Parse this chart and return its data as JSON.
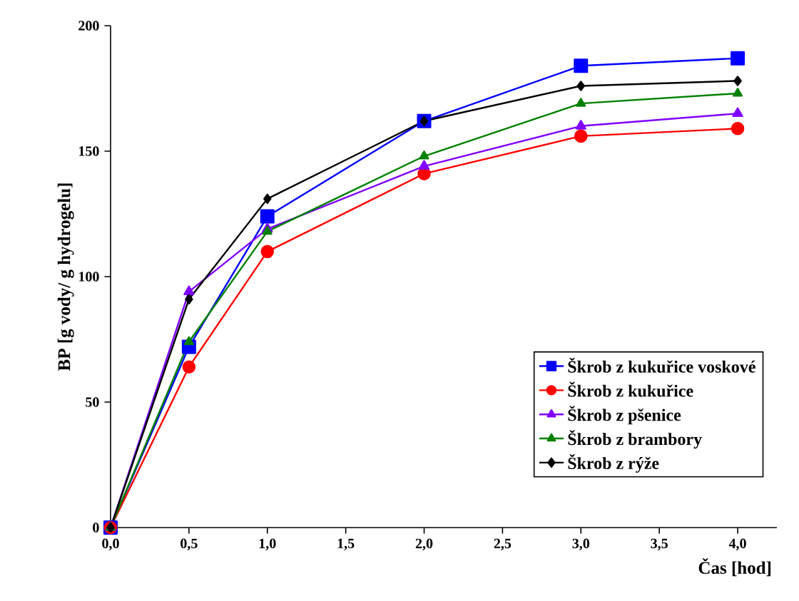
{
  "chart_data": {
    "type": "line",
    "xlabel": "Čas [hod]",
    "ylabel": "BP [g vody/ g hydrogelu]",
    "x": [
      0,
      0.5,
      1,
      2,
      3,
      4
    ],
    "series": [
      {
        "name": "Škrob z kukuřice voskové",
        "color": "#0000ff",
        "marker": "square",
        "values": [
          0,
          72,
          124,
          162,
          184,
          187
        ]
      },
      {
        "name": "Škrob z kukuřice",
        "color": "#ff0000",
        "marker": "circle",
        "values": [
          0,
          64,
          110,
          141,
          156,
          159
        ]
      },
      {
        "name": "Škrob z pšenice",
        "color": "#8000ff",
        "marker": "triangle",
        "values": [
          0,
          94,
          119,
          144,
          160,
          165
        ]
      },
      {
        "name": "Škrob z brambory",
        "color": "#008000",
        "marker": "triangle",
        "values": [
          0,
          74,
          118,
          148,
          169,
          173
        ]
      },
      {
        "name": "Škrob z rýže",
        "color": "#000000",
        "marker": "diamond",
        "values": [
          0,
          91,
          131,
          162,
          176,
          178
        ]
      }
    ],
    "xlim": [
      0,
      4.25
    ],
    "ylim": [
      0,
      200
    ],
    "xticks": [
      {
        "value": 0,
        "label": "0,0"
      },
      {
        "value": 0.5,
        "label": "0,5"
      },
      {
        "value": 1,
        "label": "1,0"
      },
      {
        "value": 1.5,
        "label": "1,5"
      },
      {
        "value": 2,
        "label": "2,0"
      },
      {
        "value": 2.5,
        "label": "2,5"
      },
      {
        "value": 3,
        "label": "3,0"
      },
      {
        "value": 3.5,
        "label": "3,5"
      },
      {
        "value": 4,
        "label": "4,0"
      }
    ],
    "yticks": [
      0,
      50,
      100,
      150,
      200
    ],
    "grid": false,
    "legend": "bottom right",
    "line_style": "solid"
  }
}
